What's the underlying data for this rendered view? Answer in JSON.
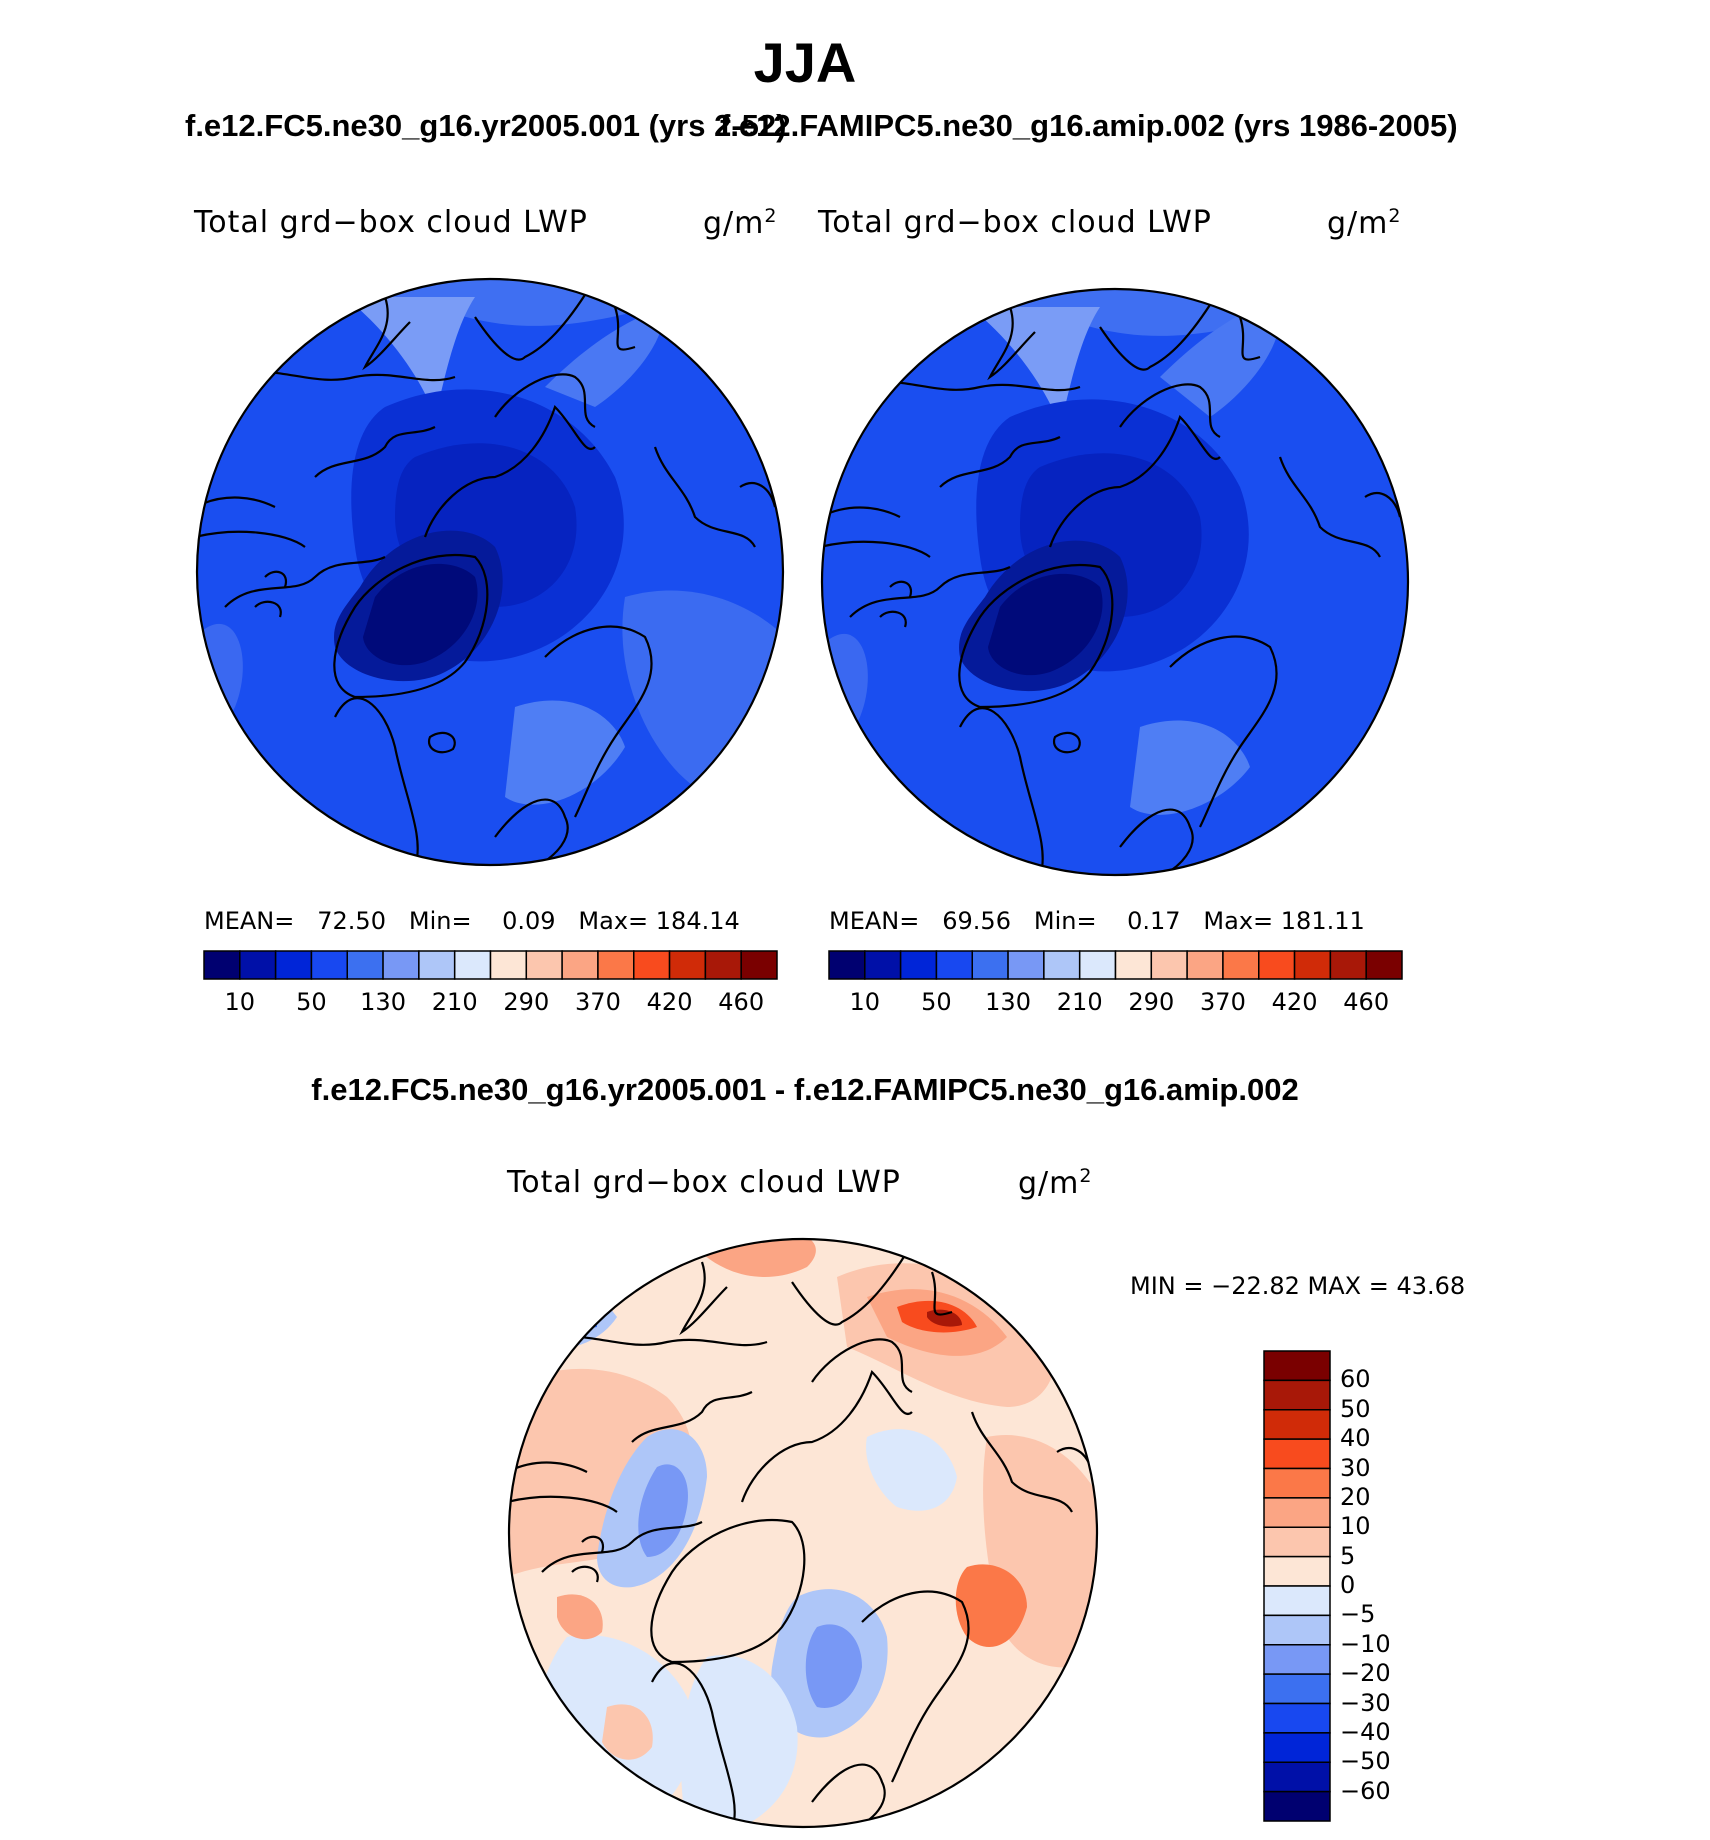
{
  "title": "JJA",
  "case_subtitle_left": "f.e12.FC5.ne30_g16.yr2005.001 (yrs 2-52)",
  "case_subtitle_right": "f.e12.FAMIPC5.ne30_g16.amip.002 (yrs 1986-2005)",
  "diff_subtitle": "f.e12.FC5.ne30_g16.yr2005.001 - f.e12.FAMIPC5.ne30_g16.amip.002",
  "panels": [
    {
      "label": "Total grd−box cloud LWP",
      "unit": "g/m",
      "unit_sup": "2",
      "mean_label": "MEAN=",
      "mean": "72.50",
      "min_label": "Min=",
      "min": "0.09",
      "max_label": "Max=",
      "max": "184.14"
    },
    {
      "label": "Total grd−box cloud LWP",
      "unit": "g/m",
      "unit_sup": "2",
      "mean_label": "MEAN=",
      "mean": "69.56",
      "min_label": "Min=",
      "min": "0.17",
      "max_label": "Max=",
      "max": "181.11"
    }
  ],
  "diff_panel": {
    "label": "Total grd−box cloud LWP",
    "unit": "g/m",
    "unit_sup": "2",
    "minmax_text": "MIN = −22.82  MAX =   43.68"
  },
  "colorbar_main": {
    "colors": [
      "#000070",
      "#0010a8",
      "#0025d8",
      "#1848f0",
      "#3c70f0",
      "#7898f5",
      "#aec6f8",
      "#dbe8fc",
      "#fde6d6",
      "#fcc6ae",
      "#fba584",
      "#fb7848",
      "#f84b1e",
      "#d02b08",
      "#a81808",
      "#7a0000"
    ],
    "tick_labels": [
      "10",
      "50",
      "130",
      "210",
      "290",
      "370",
      "420",
      "460"
    ]
  },
  "colorbar_diff": {
    "colors": [
      "#7a0000",
      "#a81808",
      "#d02b08",
      "#f84b1e",
      "#fb7848",
      "#fba584",
      "#fcc6ae",
      "#fde6d6",
      "#dbe8fc",
      "#aec6f8",
      "#7898f5",
      "#3c70f0",
      "#1848f0",
      "#0025d8",
      "#0010a8",
      "#000070"
    ],
    "tick_labels": [
      "60",
      "50",
      "40",
      "30",
      "20",
      "10",
      "5",
      "0",
      "−5",
      "−10",
      "−20",
      "−30",
      "−40",
      "−50",
      "−60"
    ]
  }
}
